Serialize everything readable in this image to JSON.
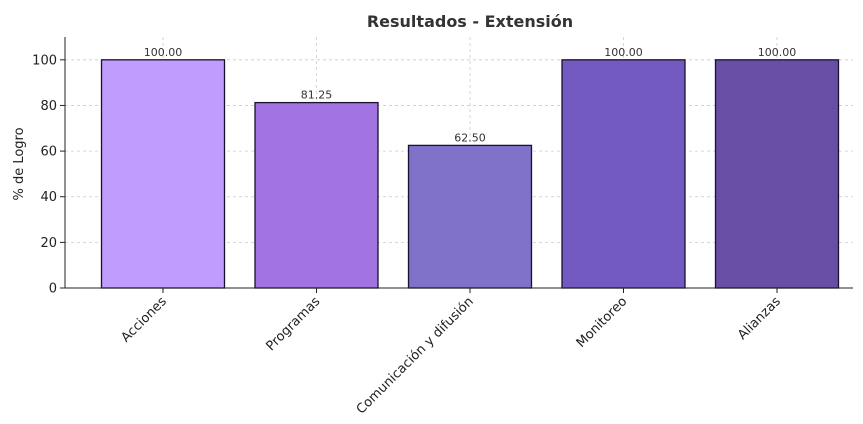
{
  "chart_data": {
    "type": "bar",
    "title": "Resultados - Extensión",
    "xlabel": "",
    "ylabel": "% de Logro",
    "categories": [
      "Acciones",
      "Programas",
      "Comunicación y difusión",
      "Monitoreo",
      "Alianzas"
    ],
    "values": [
      100.0,
      81.25,
      62.5,
      100.0,
      100.0
    ],
    "data_labels": [
      "100.00",
      "81.25",
      "62.50",
      "100.00",
      "100.00"
    ],
    "colors": [
      "#c09cff",
      "#a073e0",
      "#8071c9",
      "#735ac0",
      "#684ea4"
    ],
    "ylim": [
      0,
      110
    ],
    "yticks": [
      0,
      20,
      40,
      60,
      80,
      100
    ],
    "grid": true,
    "legend": "none"
  }
}
